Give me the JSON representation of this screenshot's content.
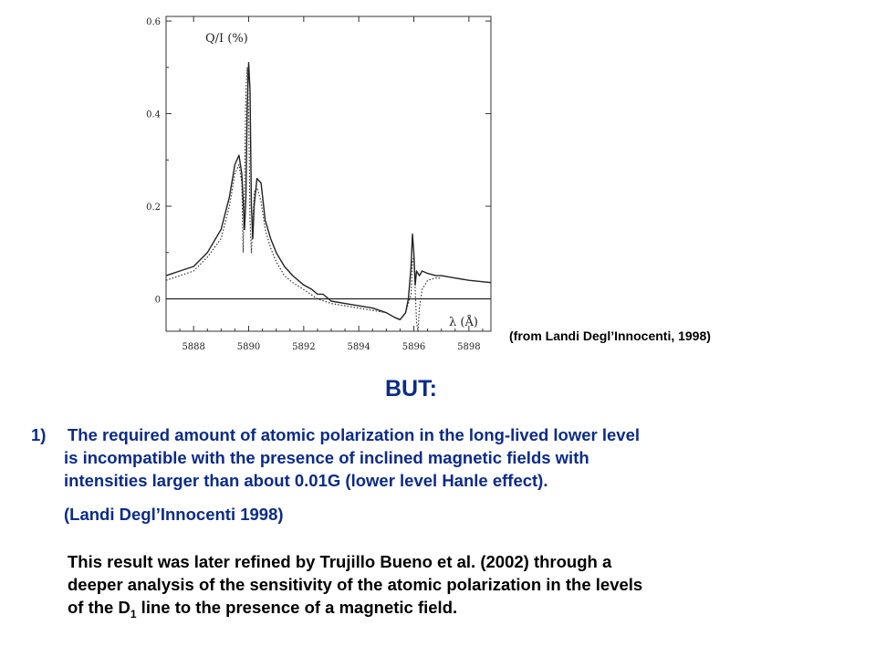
{
  "chart_data": {
    "type": "line",
    "ylabel": "Q/I (%)",
    "xlabel": "λ (Å)",
    "xlim": [
      5887,
      5898.8
    ],
    "ylim": [
      -0.07,
      0.61
    ],
    "x_ticks": [
      "5888",
      "5890",
      "5892",
      "5894",
      "5896",
      "5898"
    ],
    "y_ticks": [
      "0",
      "0.2",
      "0.4",
      "0.6"
    ],
    "x_tick_values": [
      5888,
      5890,
      5892,
      5894,
      5896,
      5898
    ],
    "y_tick_values": [
      0,
      0.2,
      0.4,
      0.6
    ],
    "series": [
      {
        "style": "solid",
        "x": [
          5887.0,
          5887.5,
          5888.0,
          5888.5,
          5889.0,
          5889.3,
          5889.5,
          5889.65,
          5889.75,
          5889.85,
          5889.9,
          5889.95,
          5890.0,
          5890.05,
          5890.1,
          5890.15,
          5890.2,
          5890.3,
          5890.45,
          5890.6,
          5890.8,
          5891.0,
          5891.3,
          5891.6,
          5892.0,
          5892.3,
          5892.5,
          5892.7,
          5893.0,
          5893.5,
          5894.0,
          5894.5,
          5895.0,
          5895.3,
          5895.5,
          5895.7,
          5895.8,
          5895.9,
          5895.95,
          5896.0,
          5896.05,
          5896.1,
          5896.2,
          5896.3,
          5896.5,
          5896.8,
          5897.0,
          5897.5,
          5898.0,
          5898.8
        ],
        "y": [
          0.05,
          0.06,
          0.07,
          0.1,
          0.15,
          0.22,
          0.29,
          0.31,
          0.27,
          0.15,
          0.22,
          0.42,
          0.51,
          0.45,
          0.2,
          0.13,
          0.2,
          0.26,
          0.25,
          0.17,
          0.13,
          0.1,
          0.07,
          0.05,
          0.03,
          0.02,
          0.01,
          0.01,
          -0.005,
          -0.01,
          -0.015,
          -0.02,
          -0.03,
          -0.04,
          -0.045,
          -0.03,
          0.0,
          0.07,
          0.14,
          0.1,
          0.03,
          0.06,
          0.05,
          0.06,
          0.055,
          0.05,
          0.05,
          0.045,
          0.04,
          0.035
        ]
      },
      {
        "style": "dotted",
        "x": [
          5887.0,
          5887.5,
          5888.0,
          5888.5,
          5889.0,
          5889.3,
          5889.5,
          5889.65,
          5889.75,
          5889.8,
          5889.85,
          5889.9,
          5889.95,
          5890.0,
          5890.05,
          5890.1,
          5890.15,
          5890.2,
          5890.3,
          5890.45,
          5890.6,
          5890.8,
          5891.0,
          5891.3,
          5891.6,
          5892.0,
          5892.5,
          5893.0,
          5893.5,
          5894.0,
          5894.5,
          5895.0,
          5895.3,
          5895.5,
          5895.7,
          5895.8,
          5895.9,
          5895.95,
          5896.0,
          5896.1,
          5896.15,
          5896.2,
          5896.3,
          5896.5,
          5896.8,
          5897.0
        ],
        "y": [
          0.04,
          0.05,
          0.06,
          0.09,
          0.13,
          0.2,
          0.27,
          0.29,
          0.25,
          0.1,
          0.25,
          0.45,
          0.5,
          0.4,
          0.17,
          0.1,
          0.16,
          0.23,
          0.24,
          0.21,
          0.15,
          0.11,
          0.08,
          0.05,
          0.035,
          0.02,
          0.0,
          -0.01,
          -0.015,
          -0.02,
          -0.025,
          -0.03,
          -0.04,
          -0.045,
          -0.03,
          -0.01,
          0.01,
          0.08,
          0.09,
          -0.05,
          -0.07,
          -0.02,
          0.02,
          0.04,
          0.045,
          0.045
        ]
      }
    ]
  },
  "figure": {
    "caption": "(from Landi Degl’Innocenti, 1998)"
  },
  "slide": {
    "heading": "BUT:",
    "list_number": "1)",
    "list_lines": [
      "The required amount of atomic polarization in the long-lived lower level",
      "is incompatible with the presence of inclined magnetic fields with",
      "intensities larger than about 0.01G (lower level Hanle effect)."
    ],
    "reference": "(Landi Degl’Innocenti 1998)",
    "paragraph_lines": [
      "This result was later refined by Trujillo Bueno et al. (2002) through a",
      "deeper analysis of the sensitivity of the atomic polarization in the levels"
    ],
    "paragraph_last_prefix": "of the D",
    "paragraph_last_subscript": "1",
    "paragraph_last_suffix": " line to the presence of a magnetic field."
  }
}
